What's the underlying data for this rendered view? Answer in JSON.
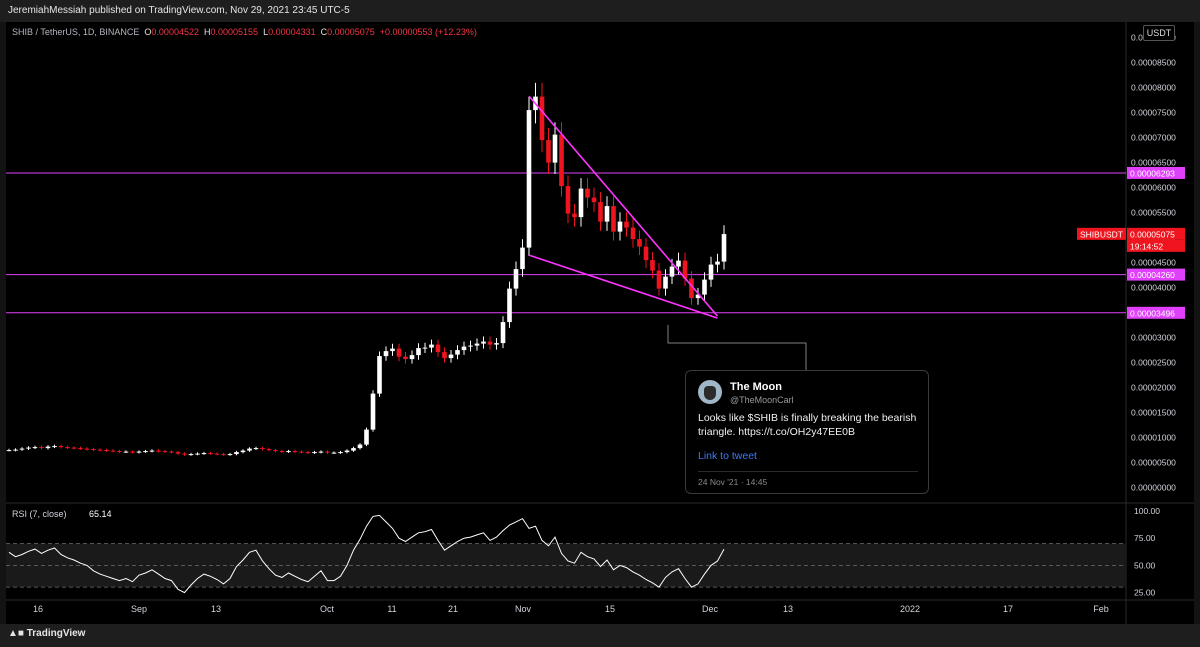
{
  "header": {
    "published": "JeremiahMessiah published on TradingView.com, Nov 29, 2021 23:45 UTC-5"
  },
  "symbol": {
    "label": "SHIB / TetherUS, 1D, BINANCE",
    "o_key": "O",
    "o": "0.00004522",
    "h_key": "H",
    "h": "0.00005155",
    "l_key": "L",
    "l": "0.00004331",
    "c_key": "C",
    "c": "0.00005075",
    "chg": "+0.00000553 (+12.23%)"
  },
  "currency_button": "USDT",
  "footer": {
    "brand": "TradingView"
  },
  "colors": {
    "up": "#ffffff",
    "down": "#f0141e",
    "levels": "#e040fb",
    "trend": "#ff33ff",
    "rsi": "#ffffff"
  },
  "tweet": {
    "name": "The Moon",
    "handle": "@TheMoonCarl",
    "text": "Looks like $SHIB is finally breaking the bearish triangle. https://t.co/OH2y47EE0B",
    "link": "Link to tweet",
    "date": "24 Nov '21 · 14:45"
  },
  "chart_data": [
    {
      "type": "candlestick",
      "title": "SHIB / TetherUS, 1D, BINANCE",
      "ylim": [
        0.0,
        9.5e-05
      ],
      "y_ticks": [
        "0.00009000",
        "0.00008500",
        "0.00008000",
        "0.00007500",
        "0.00007000",
        "0.00006500",
        "0.00006000",
        "0.00005500",
        "0.00005000",
        "0.00004500",
        "0.00004000",
        "0.00003000",
        "0.00002500",
        "0.00002000",
        "0.00001500",
        "0.00001000",
        "0.00000500",
        "0.00000000"
      ],
      "x_ticks": [
        "16",
        "Sep",
        "13",
        "Oct",
        "11",
        "21",
        "Nov",
        "15",
        "Dec",
        "13",
        "2022",
        "17",
        "Feb"
      ],
      "price_labels": [
        {
          "text": "0.00006293",
          "value": 6.293e-05,
          "kind": "level"
        },
        {
          "text": "SHIBUSDT",
          "value": 5.075e-05,
          "kind": "symbol"
        },
        {
          "text": "0.00005075",
          "value": 5.075e-05,
          "kind": "last"
        },
        {
          "text": "19:14:52",
          "value": 5.075e-05,
          "kind": "countdown"
        },
        {
          "text": "0.00004260",
          "value": 4.26e-05,
          "kind": "level"
        },
        {
          "text": "0.00003496",
          "value": 3.496e-05,
          "kind": "level"
        }
      ],
      "horizontal_levels": [
        6.293e-05,
        4.26e-05,
        3.496e-05
      ],
      "close_series": [
        7.5e-06,
        7.6e-06,
        7.8e-06,
        8e-06,
        8.1e-06,
        7.9e-06,
        8.2e-06,
        8.3e-06,
        8.1e-06,
        8e-06,
        7.9e-06,
        7.8e-06,
        7.7e-06,
        7.6e-06,
        7.5e-06,
        7.4e-06,
        7.3e-06,
        7.2e-06,
        7.2e-06,
        7.1e-06,
        7.2e-06,
        7.3e-06,
        7.4e-06,
        7.3e-06,
        7.2e-06,
        7.1e-06,
        6.8e-06,
        6.6e-06,
        6.7e-06,
        6.8e-06,
        6.9e-06,
        6.8e-06,
        6.7e-06,
        6.6e-06,
        6.7e-06,
        7.1e-06,
        7.4e-06,
        7.8e-06,
        7.9e-06,
        7.7e-06,
        7.5e-06,
        7.3e-06,
        7.2e-06,
        7.3e-06,
        7.2e-06,
        7.1e-06,
        7e-06,
        7.1e-06,
        7.2e-06,
        7e-06,
        7e-06,
        7.1e-06,
        7.4e-06,
        7.9e-06,
        8.6e-06,
        1.16e-05,
        1.88e-05,
        2.63e-05,
        2.73e-05,
        2.78e-05,
        2.62e-05,
        2.57e-05,
        2.65e-05,
        2.79e-05,
        2.8e-05,
        2.86e-05,
        2.71e-05,
        2.59e-05,
        2.66e-05,
        2.75e-05,
        2.82e-05,
        2.84e-05,
        2.88e-05,
        2.92e-05,
        2.86e-05,
        2.89e-05,
        3.31e-05,
        3.98e-05,
        4.37e-05,
        4.8e-05,
        7.55e-05,
        7.82e-05,
        6.95e-05,
        6.5e-05,
        7.06e-05,
        6.03e-05,
        5.48e-05,
        5.41e-05,
        5.98e-05,
        5.8e-05,
        5.71e-05,
        5.32e-05,
        5.63e-05,
        5.12e-05,
        5.32e-05,
        5.2e-05,
        4.97e-05,
        4.82e-05,
        4.55e-05,
        4.34e-05,
        3.98e-05,
        4.22e-05,
        4.42e-05,
        4.54e-05,
        4.18e-05,
        3.79e-05,
        3.86e-05,
        4.16e-05,
        4.46e-05,
        4.52e-05,
        5.07e-05
      ],
      "trendlines": [
        {
          "name": "upper",
          "from": [
            80,
            7.83e-05
          ],
          "to": [
            109,
            3.43e-05
          ]
        },
        {
          "name": "lower",
          "from": [
            80,
            4.65e-05
          ],
          "to": [
            109,
            3.39e-05
          ]
        }
      ]
    },
    {
      "type": "line",
      "title": "RSI (7, close)",
      "last_value": "65.14",
      "ylim": [
        20,
        100
      ],
      "y_ticks": [
        "100.00",
        "75.00",
        "50.00",
        "25.00"
      ],
      "bands": [
        70,
        50,
        30
      ],
      "values": [
        62,
        58,
        60,
        63,
        65,
        61,
        64,
        66,
        60,
        57,
        55,
        52,
        50,
        45,
        42,
        40,
        38,
        36,
        38,
        35,
        41,
        43,
        46,
        42,
        38,
        36,
        28,
        25,
        32,
        38,
        42,
        40,
        37,
        33,
        38,
        49,
        55,
        62,
        64,
        54,
        47,
        41,
        39,
        43,
        40,
        37,
        35,
        40,
        45,
        36,
        36,
        40,
        50,
        64,
        74,
        86,
        95,
        96,
        90,
        84,
        75,
        72,
        76,
        80,
        81,
        83,
        73,
        64,
        68,
        72,
        75,
        76,
        78,
        80,
        73,
        76,
        82,
        87,
        90,
        93,
        84,
        86,
        73,
        68,
        76,
        61,
        54,
        52,
        62,
        58,
        56,
        49,
        55,
        46,
        50,
        48,
        44,
        41,
        37,
        34,
        30,
        39,
        44,
        47,
        38,
        30,
        33,
        42,
        50,
        54,
        65
      ]
    }
  ]
}
